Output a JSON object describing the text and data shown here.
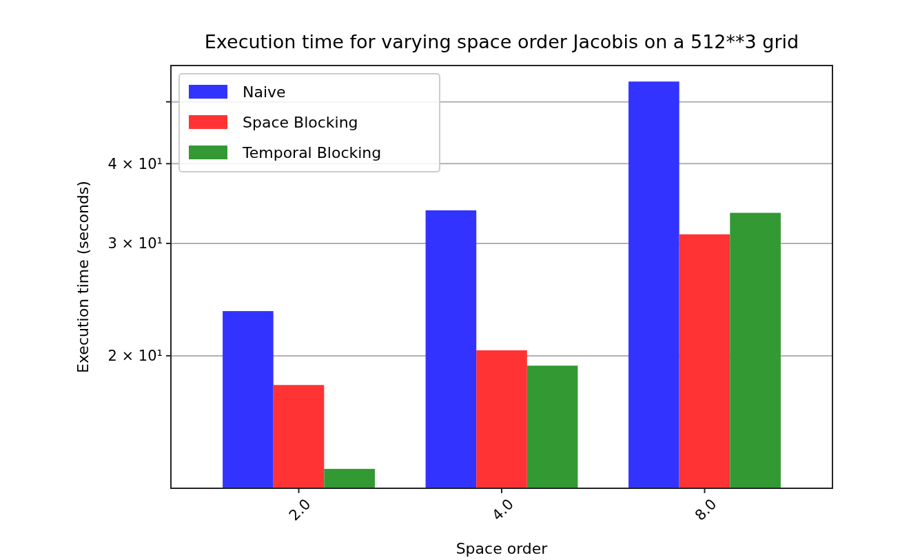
{
  "chart_data": {
    "type": "bar",
    "title": "Execution time for varying space order Jacobis on a 512**3 grid",
    "xlabel": "Space order",
    "ylabel": "Execution time (seconds)",
    "categories": [
      "2.0",
      "4.0",
      "8.0"
    ],
    "series": [
      {
        "name": "Naive",
        "color": "#3333ff",
        "values": [
          23.5,
          33.8,
          53.8
        ]
      },
      {
        "name": "Space Blocking",
        "color": "#ff3333",
        "values": [
          18.0,
          20.4,
          31.0
        ]
      },
      {
        "name": "Temporal Blocking",
        "color": "#339933",
        "values": [
          13.3,
          19.3,
          33.5
        ]
      }
    ],
    "log": "y",
    "ylim": [
      12.4,
      57
    ],
    "yticks": [
      {
        "value": 20,
        "label": "2 × 10¹"
      },
      {
        "value": 30,
        "label": "3 × 10¹"
      },
      {
        "value": 40,
        "label": "4 × 10¹"
      },
      {
        "value": 50,
        "label": null
      }
    ],
    "grid": "y",
    "legend": "top left"
  }
}
